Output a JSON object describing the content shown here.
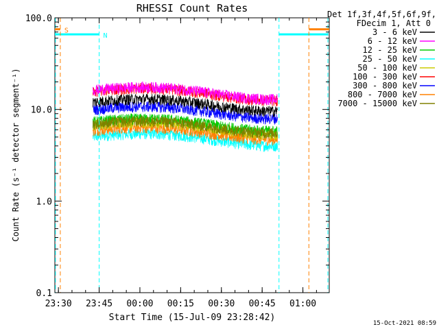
{
  "chart_data": {
    "type": "line",
    "title": "RHESSI Count Rates",
    "xlabel": "Start Time (15-Jul-09 23:28:42)",
    "ylabel": "Count Rate (s⁻¹ detector segment⁻¹)",
    "x_unit": "minutes after 15-Jul-09 23:28:42",
    "xlim": [
      0,
      101
    ],
    "ylim": [
      0.1,
      100
    ],
    "yscale": "log",
    "x_ticks": [
      {
        "v": 1.3,
        "label": "23:30"
      },
      {
        "v": 16.3,
        "label": "23:45"
      },
      {
        "v": 31.3,
        "label": "00:00"
      },
      {
        "v": 46.3,
        "label": "00:15"
      },
      {
        "v": 61.3,
        "label": "00:30"
      },
      {
        "v": 76.3,
        "label": "00:45"
      },
      {
        "v": 91.3,
        "label": "01:00"
      }
    ],
    "y_ticks": [
      {
        "v": 0.1,
        "label": "0.1"
      },
      {
        "v": 1.0,
        "label": "1.0"
      },
      {
        "v": 10.0,
        "label": "10.0"
      },
      {
        "v": 100.0,
        "label": "100.0"
      }
    ],
    "legend": {
      "position": "right",
      "header": [
        "Det 1f,3f,4f,5f,6f,9f,",
        "FDecim 1, Att 0"
      ]
    },
    "data_range": [
      14,
      82
    ],
    "series": [
      {
        "name": "3 - 6 keV",
        "color": "#000000",
        "base": 11.5
      },
      {
        "name": "6 - 12 keV",
        "color": "#ff00ff",
        "base": 15.5
      },
      {
        "name": "12 - 25 keV",
        "color": "#00cc00",
        "base": 7.0
      },
      {
        "name": "25 - 50 keV",
        "color": "#00ffff",
        "base": 4.8
      },
      {
        "name": "50 - 100 keV",
        "color": "#cccc00",
        "base": 6.4
      },
      {
        "name": "100 - 300 keV",
        "color": "#ff0000",
        "base": 15.0
      },
      {
        "name": "300 - 800 keV",
        "color": "#0000ff",
        "base": 9.5
      },
      {
        "name": "800 - 7000 keV",
        "color": "#ff8000",
        "base": 5.6
      },
      {
        "name": "7000 - 15000 keV",
        "color": "#808000",
        "base": 6.6
      }
    ],
    "markers": {
      "S": {
        "label": "S",
        "color": "#ff8000",
        "vlines": [
          2,
          93.5
        ],
        "bars": [
          [
            0,
            2
          ],
          [
            93.5,
            101
          ]
        ],
        "level": 75
      },
      "N": {
        "label": "N",
        "color": "#00ffff",
        "vlines": [
          0.2,
          16.3,
          82.5,
          100.5
        ],
        "bars": [
          [
            0,
            16.3
          ],
          [
            82.5,
            100.5
          ]
        ],
        "level": 66
      }
    }
  },
  "footer": {
    "timestamp": "15-Oct-2021 08:59"
  }
}
